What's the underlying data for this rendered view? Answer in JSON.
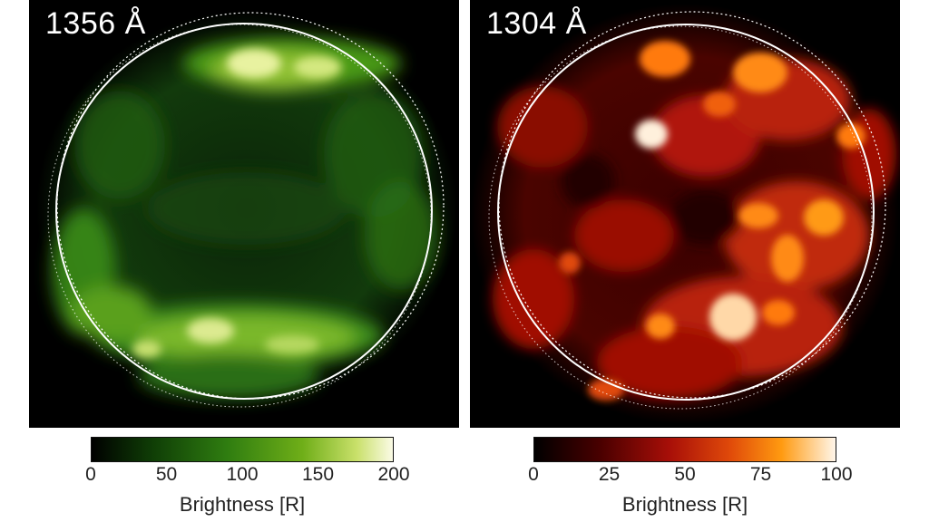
{
  "panels": [
    {
      "label": "1356 Å",
      "colormap": [
        "#000000",
        "#2f7d10",
        "#fbfbe6"
      ],
      "colorbar": {
        "ticks": [
          "0",
          "50",
          "100",
          "150",
          "200"
        ],
        "title": "Brightness [R]",
        "range": [
          0,
          200
        ]
      }
    },
    {
      "label": "1304 Å",
      "colormap": [
        "#000000",
        "#a80f08",
        "#fff6ea"
      ],
      "colorbar": {
        "ticks": [
          "0",
          "25",
          "50",
          "75",
          "100"
        ],
        "title": "Brightness [R]",
        "range": [
          0,
          100
        ]
      }
    }
  ]
}
